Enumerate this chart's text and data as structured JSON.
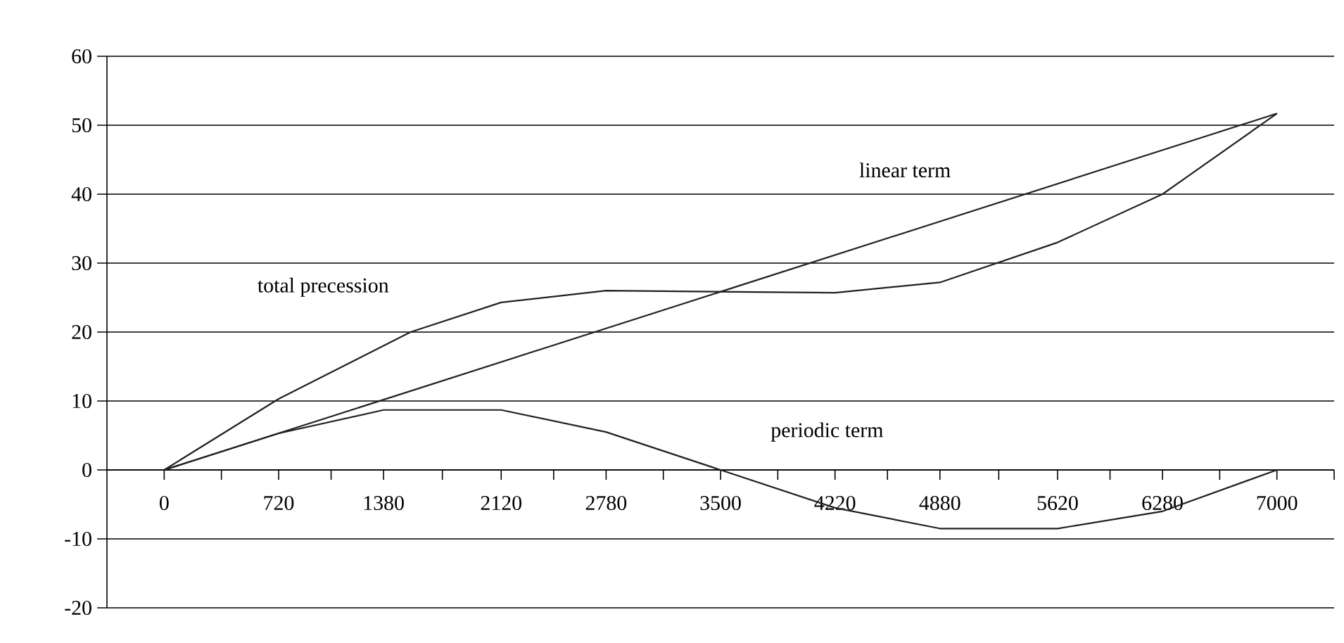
{
  "chart_data": {
    "type": "line",
    "xlim": [
      -360,
      7360
    ],
    "ylim": [
      -20,
      60
    ],
    "xticks": [
      0,
      {
        "value": 360,
        "label": null
      },
      720,
      {
        "value": 1050,
        "label": null
      },
      1380,
      {
        "value": 1750,
        "label": null
      },
      2120,
      {
        "value": 2450,
        "label": null
      },
      2780,
      {
        "value": 3140,
        "label": null
      },
      3500,
      {
        "value": 3860,
        "label": null
      },
      4220,
      {
        "value": 4550,
        "label": null
      },
      4880,
      {
        "value": 5250,
        "label": null
      },
      5620,
      {
        "value": 5950,
        "label": null
      },
      6280,
      {
        "value": 6640,
        "label": null
      },
      7000,
      {
        "value": 7360,
        "label": null
      }
    ],
    "yticks": [
      -20,
      -10,
      0,
      10,
      20,
      30,
      40,
      50,
      60
    ],
    "grid": "y",
    "legend": false,
    "marker": "none",
    "line_style": "solid",
    "series": [
      {
        "name": "linear term",
        "color": "#231f20",
        "x": [
          0,
          7000
        ],
        "values": [
          0,
          51.7
        ]
      },
      {
        "name": "total precession",
        "color": "#231f20",
        "x": [
          0,
          720,
          1550,
          2120,
          2780,
          4220,
          4880,
          5620,
          6280,
          7000
        ],
        "values": [
          0,
          10.3,
          20,
          24.3,
          26,
          25.7,
          27.2,
          33,
          40,
          51.7
        ]
      },
      {
        "name": "periodic term",
        "color": "#231f20",
        "x": [
          0,
          720,
          1380,
          2120,
          2780,
          3500,
          4220,
          4880,
          5620,
          6280,
          7000
        ],
        "values": [
          0,
          5.3,
          8.7,
          8.7,
          5.5,
          0,
          -5.5,
          -8.5,
          -8.5,
          -6,
          0
        ]
      }
    ]
  }
}
